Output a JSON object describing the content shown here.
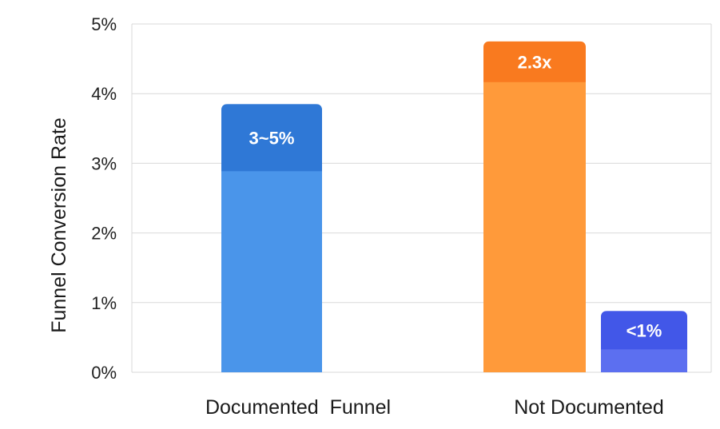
{
  "chart_data": {
    "type": "bar",
    "ylabel": "Funnel Conversion Rate",
    "ylim": [
      0,
      5
    ],
    "yticks": [
      "0%",
      "1%",
      "2%",
      "3%",
      "4%",
      "5%"
    ],
    "grid": true,
    "categories": [
      "Documented  Funnel",
      "Not Documented"
    ],
    "bars": [
      {
        "category": "Documented  Funnel",
        "value": 3.85,
        "label": "3~5%",
        "color_body": "#4a95ea",
        "color_cap": "#2f78d6"
      },
      {
        "category": "Not Documented",
        "value": 4.75,
        "label": "2.3x",
        "color_body": "#ff9a3a",
        "color_cap": "#f97a1f"
      },
      {
        "category": "Not Documented",
        "value": 0.88,
        "label": "<1%",
        "color_body": "#5c6ff0",
        "color_cap": "#4257e8"
      }
    ]
  }
}
